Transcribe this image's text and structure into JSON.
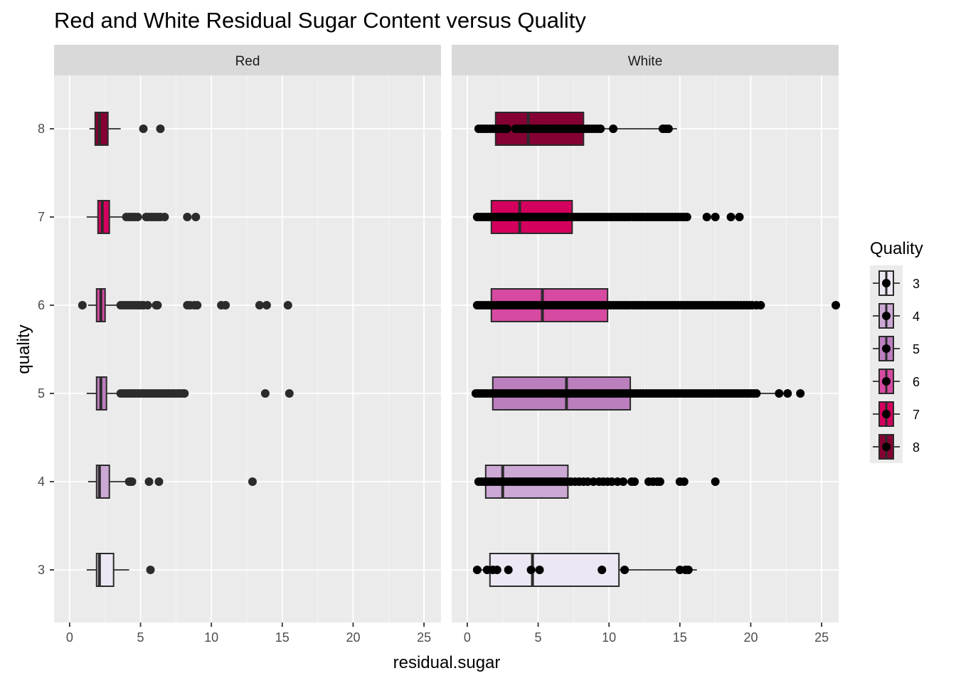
{
  "chart_data": {
    "type": "boxplot",
    "title": "Red and White Residual Sugar Content versus Quality",
    "xlabel": "residual.sugar",
    "ylabel": "quality",
    "xlim": [
      -1.1,
      26.2
    ],
    "x_ticks": [
      0,
      5,
      10,
      15,
      20,
      25
    ],
    "y_categories": [
      "3",
      "4",
      "5",
      "6",
      "7",
      "8"
    ],
    "grid": true,
    "facets": [
      {
        "name": "Red",
        "boxes": [
          {
            "quality": "3",
            "min": 1.2,
            "q1": 1.9,
            "median": 2.1,
            "q3": 3.1,
            "max": 4.2,
            "outliers": [
              5.7
            ]
          },
          {
            "quality": "4",
            "min": 1.3,
            "q1": 1.9,
            "median": 2.1,
            "q3": 2.8,
            "max": 4.0,
            "outliers": [
              4.2,
              4.3,
              4.4,
              5.6,
              6.3,
              12.9
            ]
          },
          {
            "quality": "5",
            "min": 1.2,
            "q1": 1.9,
            "median": 2.2,
            "q3": 2.6,
            "max": 3.6,
            "outliers": [
              3.6,
              3.8,
              4.0,
              4.2,
              4.4,
              4.6,
              4.8,
              5.0,
              5.2,
              5.4,
              5.6,
              5.8,
              6.0,
              6.2,
              6.4,
              6.6,
              6.8,
              7.0,
              7.2,
              7.4,
              7.6,
              7.8,
              8.0,
              8.1,
              13.8,
              15.5
            ]
          },
          {
            "quality": "6",
            "min": 1.3,
            "q1": 1.9,
            "median": 2.2,
            "q3": 2.5,
            "max": 3.4,
            "outliers": [
              0.9,
              3.6,
              3.8,
              4.0,
              4.2,
              4.4,
              4.6,
              4.8,
              5.0,
              5.2,
              5.5,
              6.1,
              6.2,
              8.3,
              8.5,
              8.8,
              9.0,
              10.7,
              11.0,
              13.4,
              13.9,
              15.4
            ]
          },
          {
            "quality": "7",
            "min": 1.2,
            "q1": 2.0,
            "median": 2.3,
            "q3": 2.8,
            "max": 3.8,
            "outliers": [
              4.0,
              4.2,
              4.4,
              4.6,
              4.8,
              5.4,
              5.6,
              5.8,
              6.0,
              6.2,
              6.4,
              6.7,
              8.3,
              8.9
            ]
          },
          {
            "quality": "8",
            "min": 1.4,
            "q1": 1.8,
            "median": 2.1,
            "q3": 2.7,
            "max": 3.6,
            "outliers": [
              5.2,
              6.4
            ]
          }
        ]
      },
      {
        "name": "White",
        "boxes": [
          {
            "quality": "3",
            "min": 0.7,
            "q1": 1.6,
            "median": 4.6,
            "q3": 10.7,
            "max": 16.2,
            "outliers": [
              0.7,
              1.4,
              1.8,
              2.1,
              2.9,
              4.5,
              5.1,
              9.5,
              11.1,
              15.0,
              15.4,
              15.6
            ]
          },
          {
            "quality": "4",
            "min": 0.7,
            "q1": 1.3,
            "median": 2.5,
            "q3": 7.1,
            "max": 7.4,
            "outliers": [
              0.8,
              1.0,
              1.2,
              1.4,
              1.6,
              1.8,
              2.0,
              2.2,
              2.4,
              2.6,
              2.8,
              3.0,
              3.2,
              3.4,
              3.6,
              3.8,
              4.0,
              4.2,
              4.4,
              4.6,
              4.8,
              5.0,
              5.2,
              5.4,
              5.6,
              5.8,
              6.0,
              6.2,
              6.4,
              6.6,
              6.8,
              7.0,
              7.3,
              7.6,
              7.9,
              8.2,
              8.5,
              8.9,
              9.3,
              9.6,
              9.9,
              10.2,
              10.6,
              11.0,
              11.6,
              11.8,
              12.8,
              13.1,
              13.4,
              13.6,
              15.0,
              15.3,
              17.5
            ]
          },
          {
            "quality": "5",
            "min": 0.6,
            "q1": 1.8,
            "median": 7.0,
            "q3": 11.5,
            "max": 22.0,
            "outliers": [
              0.6,
              0.8,
              1.0,
              1.2,
              1.4,
              1.6,
              1.8,
              2.0,
              2.2,
              2.4,
              2.6,
              2.8,
              3.0,
              3.2,
              3.4,
              3.6,
              3.8,
              4.0,
              4.2,
              4.4,
              4.6,
              4.8,
              5.0,
              5.2,
              5.4,
              5.6,
              5.8,
              6.0,
              6.2,
              6.4,
              6.6,
              6.8,
              7.0,
              7.2,
              7.4,
              7.6,
              7.8,
              8.0,
              8.2,
              8.4,
              8.6,
              8.8,
              9.0,
              9.2,
              9.4,
              9.6,
              9.8,
              10.0,
              10.2,
              10.4,
              10.6,
              10.8,
              11.0,
              11.2,
              11.4,
              11.6,
              11.8,
              12.0,
              12.2,
              12.4,
              12.6,
              12.8,
              13.0,
              13.2,
              13.4,
              13.6,
              13.8,
              14.0,
              14.2,
              14.4,
              14.6,
              14.8,
              15.0,
              15.2,
              15.4,
              15.6,
              15.8,
              16.0,
              16.2,
              16.4,
              16.6,
              16.8,
              17.0,
              17.2,
              17.4,
              17.6,
              17.8,
              18.0,
              18.2,
              18.4,
              18.6,
              18.8,
              19.0,
              19.2,
              19.4,
              19.6,
              19.8,
              20.0,
              20.2,
              20.4,
              22.0,
              22.6,
              23.5
            ]
          },
          {
            "quality": "6",
            "min": 0.7,
            "q1": 1.7,
            "median": 5.3,
            "q3": 9.9,
            "max": 21.0,
            "outliers": [
              0.7,
              0.9,
              1.1,
              1.3,
              1.5,
              1.7,
              1.9,
              2.1,
              2.3,
              2.5,
              2.7,
              2.9,
              3.1,
              3.3,
              3.5,
              3.7,
              3.9,
              4.1,
              4.3,
              4.5,
              4.7,
              4.9,
              5.1,
              5.3,
              5.5,
              5.7,
              5.9,
              6.1,
              6.3,
              6.5,
              6.7,
              6.9,
              7.1,
              7.3,
              7.5,
              7.7,
              7.9,
              8.1,
              8.3,
              8.5,
              8.7,
              8.9,
              9.1,
              9.3,
              9.5,
              9.7,
              9.9,
              10.1,
              10.3,
              10.5,
              10.7,
              10.9,
              11.1,
              11.3,
              11.5,
              11.7,
              11.9,
              12.1,
              12.3,
              12.5,
              12.7,
              12.9,
              13.1,
              13.3,
              13.5,
              13.7,
              13.9,
              14.1,
              14.3,
              14.5,
              14.7,
              14.9,
              15.1,
              15.3,
              15.5,
              15.7,
              15.9,
              16.1,
              16.3,
              16.5,
              16.7,
              16.9,
              17.1,
              17.3,
              17.5,
              17.7,
              17.9,
              18.1,
              18.3,
              18.5,
              18.7,
              18.9,
              19.1,
              19.3,
              19.5,
              19.7,
              19.9,
              20.1,
              20.4,
              20.7,
              26.0
            ]
          },
          {
            "quality": "7",
            "min": 0.7,
            "q1": 1.7,
            "median": 3.7,
            "q3": 7.4,
            "max": 15.5,
            "outliers": [
              0.7,
              0.9,
              1.1,
              1.3,
              1.5,
              1.7,
              1.9,
              2.1,
              2.3,
              2.5,
              2.7,
              2.9,
              3.1,
              3.3,
              3.5,
              3.7,
              3.9,
              4.1,
              4.3,
              4.5,
              4.7,
              4.9,
              5.1,
              5.3,
              5.5,
              5.7,
              5.9,
              6.1,
              6.3,
              6.5,
              6.7,
              6.9,
              7.1,
              7.3,
              7.5,
              7.7,
              7.9,
              8.1,
              8.3,
              8.5,
              8.7,
              8.9,
              9.1,
              9.3,
              9.5,
              9.7,
              9.9,
              10.1,
              10.3,
              10.5,
              10.7,
              10.9,
              11.1,
              11.3,
              11.5,
              11.7,
              11.9,
              12.1,
              12.3,
              12.5,
              12.7,
              12.9,
              13.1,
              13.3,
              13.5,
              13.7,
              13.9,
              14.1,
              14.3,
              14.5,
              14.7,
              14.9,
              15.1,
              15.3,
              15.5,
              16.9,
              17.5,
              18.6,
              19.2
            ]
          },
          {
            "quality": "8",
            "min": 0.8,
            "q1": 2.0,
            "median": 4.3,
            "q3": 8.2,
            "max": 14.8,
            "outliers": [
              0.8,
              1.0,
              1.2,
              1.4,
              1.6,
              1.8,
              2.0,
              2.2,
              2.4,
              2.6,
              2.8,
              3.4,
              3.6,
              3.8,
              4.0,
              4.2,
              4.4,
              4.6,
              4.8,
              5.0,
              5.2,
              5.4,
              5.6,
              5.8,
              6.0,
              6.2,
              6.4,
              6.6,
              6.8,
              7.0,
              7.2,
              7.4,
              7.6,
              7.8,
              8.0,
              8.2,
              8.4,
              8.6,
              8.8,
              9.0,
              9.2,
              9.4,
              10.3,
              13.8,
              14.0,
              14.2
            ]
          }
        ]
      }
    ],
    "legend": {
      "title": "Quality",
      "position": "right",
      "entries": [
        {
          "label": "3",
          "color": "#ECE7F2"
        },
        {
          "label": "4",
          "color": "#CCA8D4"
        },
        {
          "label": "5",
          "color": "#BB7FBE"
        },
        {
          "label": "6",
          "color": "#D64AA1"
        },
        {
          "label": "7",
          "color": "#D4005E"
        },
        {
          "label": "8",
          "color": "#850033"
        }
      ]
    },
    "colors": {
      "panel_background": "#EBEBEB",
      "strip_background": "#D9D9D9",
      "grid_major": "#FFFFFF",
      "outlier_red": "#2B2B2B",
      "outlier_white": "#000000",
      "box_outline": "#2B2B2B"
    }
  }
}
